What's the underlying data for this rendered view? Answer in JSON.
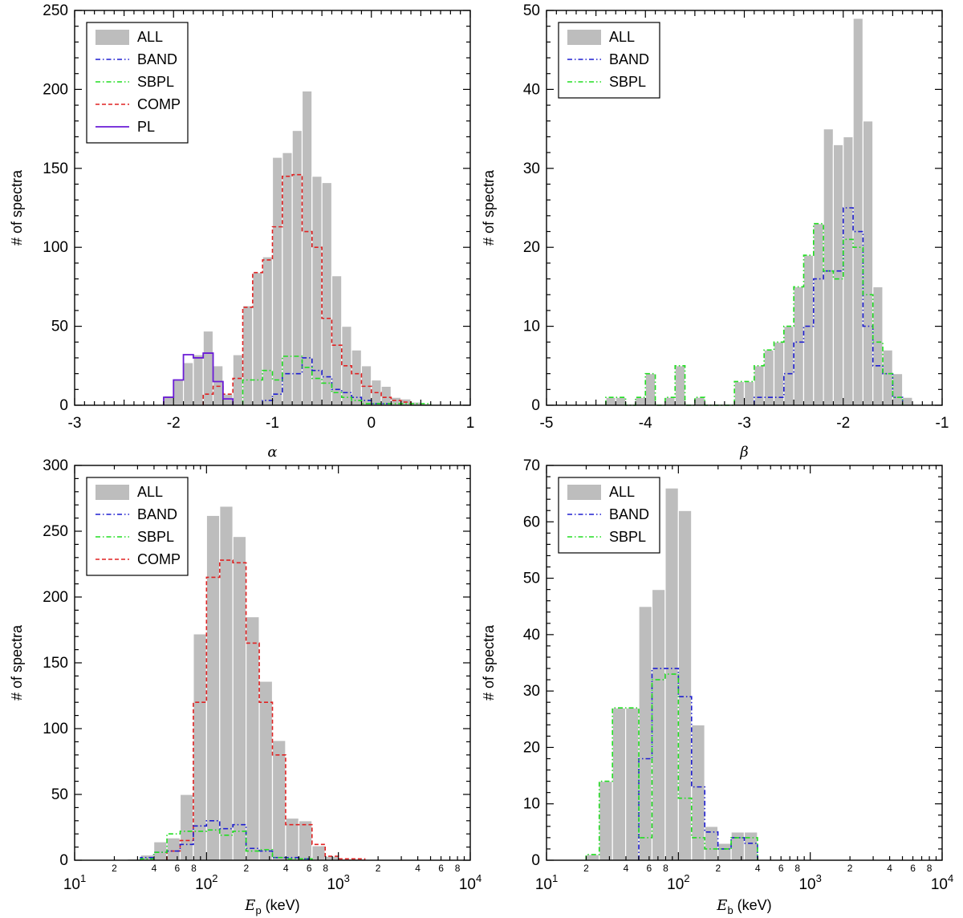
{
  "colors": {
    "all": "#bdbdbd",
    "band": "#1f1fd1",
    "sbpl": "#22dd22",
    "comp": "#e02222",
    "pl": "#6a1bd6"
  },
  "chart_data": [
    {
      "id": "alpha",
      "type": "bar",
      "xscale": "linear",
      "xlim": [
        -3,
        1
      ],
      "ylim": [
        0,
        250
      ],
      "xticks": [
        -3,
        -2,
        -1,
        0,
        1
      ],
      "xtick_labels": [
        "-3",
        "-2",
        "-1",
        "0",
        "1"
      ],
      "yticks": [
        0,
        50,
        100,
        150,
        200,
        250
      ],
      "ytick_labels": [
        "0",
        "50",
        "100",
        "150",
        "200",
        "250"
      ],
      "xlabel": "α",
      "ylabel": "# of spectra",
      "legend_position": "top-left",
      "legend": [
        {
          "key": "all",
          "label": "ALL"
        },
        {
          "key": "band",
          "label": "BAND"
        },
        {
          "key": "sbpl",
          "label": "SBPL"
        },
        {
          "key": "comp",
          "label": "COMP"
        },
        {
          "key": "pl",
          "label": "PL"
        }
      ],
      "bin_start": -2.1,
      "bin_width": 0.1,
      "series": [
        {
          "key": "all",
          "name": "ALL",
          "values": [
            6,
            16,
            27,
            32,
            47,
            25,
            7,
            32,
            63,
            84,
            94,
            157,
            160,
            174,
            199,
            145,
            141,
            82,
            50,
            35,
            25,
            16,
            12,
            5,
            4,
            2,
            1
          ]
        },
        {
          "key": "comp",
          "name": "COMP",
          "values": [
            0,
            0,
            0,
            0,
            7,
            12,
            7,
            17,
            62,
            84,
            92,
            113,
            145,
            146,
            110,
            100,
            55,
            38,
            25,
            20,
            12,
            8,
            5,
            3,
            2,
            0,
            0
          ]
        },
        {
          "key": "band",
          "name": "BAND",
          "values": [
            0,
            0,
            0,
            0,
            0,
            0,
            0,
            0,
            0,
            0,
            3,
            7,
            20,
            20,
            30,
            22,
            18,
            10,
            8,
            5,
            3,
            1,
            1,
            0,
            0,
            0,
            0
          ]
        },
        {
          "key": "sbpl",
          "name": "SBPL",
          "values": [
            0,
            0,
            0,
            0,
            0,
            0,
            0,
            0,
            16,
            16,
            22,
            16,
            31,
            31,
            24,
            17,
            14,
            8,
            5,
            3,
            1,
            1,
            1,
            1,
            1,
            1,
            1
          ]
        },
        {
          "key": "pl",
          "name": "PL",
          "values": [
            5,
            16,
            32,
            30,
            33,
            15,
            4,
            0,
            0,
            0,
            0,
            0,
            0,
            0,
            0,
            0,
            0,
            0,
            0,
            0,
            0,
            0,
            0,
            0,
            0,
            0,
            0
          ]
        }
      ]
    },
    {
      "id": "beta",
      "type": "bar",
      "xscale": "linear",
      "xlim": [
        -5,
        -1
      ],
      "ylim": [
        0,
        50
      ],
      "xticks": [
        -5,
        -4,
        -3,
        -2,
        -1
      ],
      "xtick_labels": [
        "-5",
        "-4",
        "-3",
        "-2",
        "-1"
      ],
      "yticks": [
        0,
        10,
        20,
        30,
        40,
        50
      ],
      "ytick_labels": [
        "0",
        "10",
        "20",
        "30",
        "40",
        "50"
      ],
      "xlabel": "β",
      "ylabel": "# of spectra",
      "legend_position": "top-left",
      "legend": [
        {
          "key": "all",
          "label": "ALL"
        },
        {
          "key": "band",
          "label": "BAND"
        },
        {
          "key": "sbpl",
          "label": "SBPL"
        }
      ],
      "bin_start": -4.4,
      "bin_width": 0.1,
      "series": [
        {
          "key": "all",
          "name": "ALL",
          "values": [
            1,
            1,
            0,
            1,
            4,
            0,
            1,
            5,
            0,
            1,
            0,
            0,
            0,
            3,
            3,
            5,
            7,
            8,
            10,
            15,
            19,
            23,
            35,
            33,
            34,
            49,
            36,
            15,
            7,
            4,
            1,
            0
          ]
        },
        {
          "key": "band",
          "name": "BAND",
          "values": [
            0,
            0,
            0,
            0,
            0,
            0,
            0,
            0,
            0,
            0,
            0,
            0,
            0,
            0,
            0,
            1,
            1,
            1,
            4,
            8,
            10,
            16,
            17,
            17,
            25,
            22,
            10,
            5,
            4,
            1,
            0,
            0
          ]
        },
        {
          "key": "sbpl",
          "name": "SBPL",
          "values": [
            1,
            1,
            0,
            1,
            4,
            0,
            1,
            5,
            0,
            1,
            0,
            0,
            0,
            3,
            3,
            5,
            7,
            8,
            10,
            15,
            19,
            23,
            17,
            16,
            21,
            20,
            14,
            8,
            4,
            1,
            0,
            0
          ]
        }
      ]
    },
    {
      "id": "ep",
      "type": "bar",
      "xscale": "log",
      "xlim_exp": [
        1,
        4
      ],
      "ylim": [
        0,
        300
      ],
      "xticks_major": [
        {
          "exp": 1,
          "base": "10",
          "sup": "1"
        },
        {
          "exp": 2,
          "base": "10",
          "sup": "2"
        },
        {
          "exp": 3,
          "base": "10",
          "sup": "3"
        },
        {
          "exp": 4,
          "base": "10",
          "sup": "4"
        }
      ],
      "minor_labels": [
        "2",
        "4",
        "6",
        "8"
      ],
      "yticks": [
        0,
        50,
        100,
        150,
        200,
        250,
        300
      ],
      "ytick_labels": [
        "0",
        "50",
        "100",
        "150",
        "200",
        "250",
        "300"
      ],
      "xlabel_main": "E",
      "xlabel_sub": "p",
      "xlabel_unit": " (keV)",
      "ylabel": "# of spectra",
      "legend_position": "top-left",
      "legend": [
        {
          "key": "all",
          "label": "ALL"
        },
        {
          "key": "band",
          "label": "BAND"
        },
        {
          "key": "sbpl",
          "label": "SBPL"
        },
        {
          "key": "comp",
          "label": "COMP"
        }
      ],
      "bin_start_exp": 1.4,
      "bin_width_exp": 0.1,
      "series": [
        {
          "key": "all",
          "name": "ALL",
          "values": [
            1,
            4,
            14,
            17,
            50,
            172,
            262,
            269,
            246,
            185,
            136,
            91,
            32,
            30,
            11,
            3,
            1,
            1,
            0,
            0
          ]
        },
        {
          "key": "comp",
          "name": "COMP",
          "values": [
            0,
            0,
            0,
            7,
            15,
            120,
            215,
            228,
            226,
            165,
            120,
            80,
            27,
            27,
            12,
            3,
            1,
            1,
            0,
            0
          ]
        },
        {
          "key": "band",
          "name": "BAND",
          "values": [
            0,
            2,
            6,
            7,
            12,
            26,
            30,
            24,
            27,
            9,
            7,
            2,
            2,
            1,
            0,
            0,
            0,
            0,
            0,
            0
          ]
        },
        {
          "key": "sbpl",
          "name": "SBPL",
          "values": [
            0,
            1,
            6,
            20,
            22,
            22,
            23,
            19,
            22,
            7,
            8,
            2,
            1,
            1,
            0,
            0,
            0,
            0,
            0,
            0
          ]
        }
      ]
    },
    {
      "id": "eb",
      "type": "bar",
      "xscale": "log",
      "xlim_exp": [
        1,
        4
      ],
      "ylim": [
        0,
        70
      ],
      "xticks_major": [
        {
          "exp": 1,
          "base": "10",
          "sup": "1"
        },
        {
          "exp": 2,
          "base": "10",
          "sup": "2"
        },
        {
          "exp": 3,
          "base": "10",
          "sup": "3"
        },
        {
          "exp": 4,
          "base": "10",
          "sup": "4"
        }
      ],
      "minor_labels": [
        "2",
        "4",
        "6",
        "8"
      ],
      "yticks": [
        0,
        10,
        20,
        30,
        40,
        50,
        60,
        70
      ],
      "ytick_labels": [
        "0",
        "10",
        "20",
        "30",
        "40",
        "50",
        "60",
        "70"
      ],
      "xlabel_main": "E",
      "xlabel_sub": "b",
      "xlabel_unit": " (keV)",
      "ylabel": "# of spectra",
      "legend_position": "top-left",
      "legend": [
        {
          "key": "all",
          "label": "ALL"
        },
        {
          "key": "band",
          "label": "BAND"
        },
        {
          "key": "sbpl",
          "label": "SBPL"
        }
      ],
      "bin_start_exp": 1.3,
      "bin_width_exp": 0.1,
      "series": [
        {
          "key": "all",
          "name": "ALL",
          "values": [
            1,
            14,
            27,
            27,
            45,
            48,
            66,
            62,
            24,
            6,
            3,
            5,
            5,
            0
          ]
        },
        {
          "key": "band",
          "name": "BAND",
          "values": [
            0,
            0,
            0,
            0,
            18,
            34,
            34,
            29,
            13,
            5,
            2,
            4,
            3,
            0
          ]
        },
        {
          "key": "sbpl",
          "name": "SBPL",
          "values": [
            1,
            14,
            27,
            27,
            4,
            32,
            33,
            11,
            4,
            2,
            2,
            4,
            4,
            0
          ]
        }
      ]
    }
  ]
}
